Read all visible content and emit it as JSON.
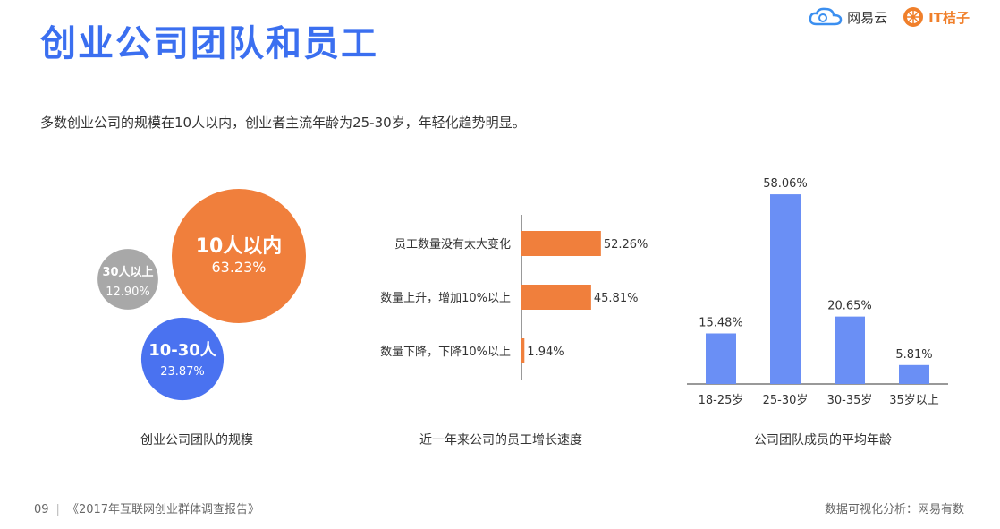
{
  "header": {
    "title": "创业公司团队和员工",
    "subtitle": "多数创业公司的规模在10人以内，创业者主流年龄为25-30岁，年轻化趋势明显。",
    "logo_netease": "网易云",
    "logo_it": "IT桔子"
  },
  "chart_data": [
    {
      "type": "bubble",
      "caption": "创业公司团队的规模",
      "items": [
        {
          "label": "10人以内",
          "value": "63.23%",
          "color": "#f07f3c"
        },
        {
          "label": "30人以上",
          "value": "12.90%",
          "color": "#a8a8a8"
        },
        {
          "label": "10-30人",
          "value": "23.87%",
          "color": "#4a72f0"
        }
      ]
    },
    {
      "type": "bar",
      "orientation": "horizontal",
      "caption": "近一年来公司的员工增长速度",
      "color": "#f07f3c",
      "categories": [
        "员工数量没有太大变化",
        "数量上升，增加10%以上",
        "数量下降，下降10%以上"
      ],
      "values": [
        52.26,
        45.81,
        1.94
      ],
      "value_labels": [
        "52.26%",
        "45.81%",
        "1.94%"
      ]
    },
    {
      "type": "bar",
      "caption": "公司团队成员的平均年龄",
      "color": "#6a8ff5",
      "categories": [
        "18-25岁",
        "25-30岁",
        "30-35岁",
        "35岁以上"
      ],
      "values": [
        15.48,
        58.06,
        20.65,
        5.81
      ],
      "value_labels": [
        "15.48%",
        "58.06%",
        "20.65%",
        "5.81%"
      ]
    }
  ],
  "footer": {
    "page": "09",
    "report": "《2017年互联网创业群体调查报告》",
    "source": "数据可视化分析：网易有数"
  }
}
